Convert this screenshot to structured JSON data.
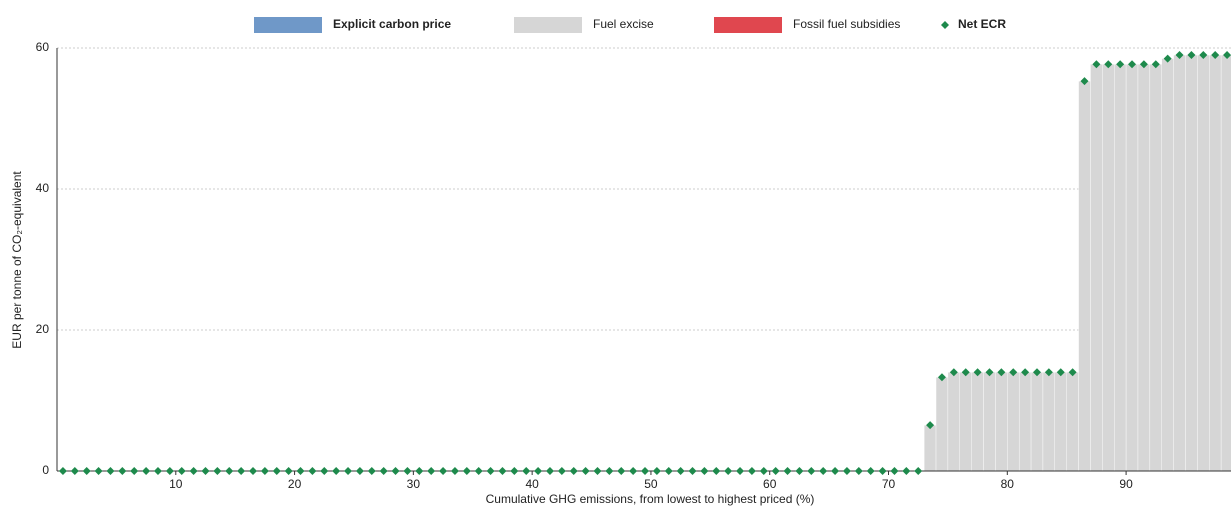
{
  "chart_data": {
    "type": "bar",
    "xlabel": "Cumulative GHG emissions, from lowest to highest priced (%)",
    "ylabel": "EUR per tonne of CO₂-equivalent",
    "x": [
      0.5,
      1.5,
      2.5,
      3.5,
      4.5,
      5.5,
      6.5,
      7.5,
      8.5,
      9.5,
      10.5,
      11.5,
      12.5,
      13.5,
      14.5,
      15.5,
      16.5,
      17.5,
      18.5,
      19.5,
      20.5,
      21.5,
      22.5,
      23.5,
      24.5,
      25.5,
      26.5,
      27.5,
      28.5,
      29.5,
      30.5,
      31.5,
      32.5,
      33.5,
      34.5,
      35.5,
      36.5,
      37.5,
      38.5,
      39.5,
      40.5,
      41.5,
      42.5,
      43.5,
      44.5,
      45.5,
      46.5,
      47.5,
      48.5,
      49.5,
      50.5,
      51.5,
      52.5,
      53.5,
      54.5,
      55.5,
      56.5,
      57.5,
      58.5,
      59.5,
      60.5,
      61.5,
      62.5,
      63.5,
      64.5,
      65.5,
      66.5,
      67.5,
      68.5,
      69.5,
      70.5,
      71.5,
      72.5,
      73.5,
      74.5,
      75.5,
      76.5,
      77.5,
      78.5,
      79.5,
      80.5,
      81.5,
      82.5,
      83.5,
      84.5,
      85.5,
      86.5,
      87.5,
      88.5,
      89.5,
      90.5,
      91.5,
      92.5,
      93.5,
      94.5,
      95.5,
      96.5,
      97.5,
      98.5
    ],
    "series": [
      {
        "name": "Explicit carbon price",
        "color": "#6f98c8",
        "values": [
          0,
          0,
          0,
          0,
          0,
          0,
          0,
          0,
          0,
          0,
          0,
          0,
          0,
          0,
          0,
          0,
          0,
          0,
          0,
          0,
          0,
          0,
          0,
          0,
          0,
          0,
          0,
          0,
          0,
          0,
          0,
          0,
          0,
          0,
          0,
          0,
          0,
          0,
          0,
          0,
          0,
          0,
          0,
          0,
          0,
          0,
          0,
          0,
          0,
          0,
          0,
          0,
          0,
          0,
          0,
          0,
          0,
          0,
          0,
          0,
          0,
          0,
          0,
          0,
          0,
          0,
          0,
          0,
          0,
          0,
          0,
          0,
          0,
          0,
          0,
          0,
          0,
          0,
          0,
          0,
          0,
          0,
          0,
          0,
          0,
          0,
          0,
          0,
          0,
          0,
          0,
          0,
          0,
          0,
          0,
          0,
          0,
          0,
          0
        ]
      },
      {
        "name": "Fuel excise",
        "color": "#d6d6d6",
        "values": [
          0,
          0,
          0,
          0,
          0,
          0,
          0,
          0,
          0,
          0,
          0,
          0,
          0,
          0,
          0,
          0,
          0,
          0,
          0,
          0,
          0,
          0,
          0,
          0,
          0,
          0,
          0,
          0,
          0,
          0,
          0,
          0,
          0,
          0,
          0,
          0,
          0,
          0,
          0,
          0,
          0,
          0,
          0,
          0,
          0,
          0,
          0,
          0,
          0,
          0,
          0,
          0,
          0,
          0,
          0,
          0,
          0,
          0,
          0,
          0,
          0,
          0,
          0,
          0,
          0,
          0,
          0,
          0,
          0,
          0,
          0,
          0,
          0,
          6.5,
          13.3,
          14,
          14,
          14,
          14,
          14,
          14,
          14,
          14,
          14,
          14,
          14,
          55.3,
          57.7,
          57.7,
          57.7,
          57.7,
          57.7,
          57.7,
          58.5,
          59,
          59,
          59,
          59,
          59
        ]
      },
      {
        "name": "Fossil fuel subsidies",
        "color": "#e0474f",
        "values": [
          0,
          0,
          0,
          0,
          0,
          0,
          0,
          0,
          0,
          0,
          0,
          0,
          0,
          0,
          0,
          0,
          0,
          0,
          0,
          0,
          0,
          0,
          0,
          0,
          0,
          0,
          0,
          0,
          0,
          0,
          0,
          0,
          0,
          0,
          0,
          0,
          0,
          0,
          0,
          0,
          0,
          0,
          0,
          0,
          0,
          0,
          0,
          0,
          0,
          0,
          0,
          0,
          0,
          0,
          0,
          0,
          0,
          0,
          0,
          0,
          0,
          0,
          0,
          0,
          0,
          0,
          0,
          0,
          0,
          0,
          0,
          0,
          0,
          0,
          0,
          0,
          0,
          0,
          0,
          0,
          0,
          0,
          0,
          0,
          0,
          0,
          0,
          0,
          0,
          0,
          0,
          0,
          0,
          0,
          0,
          0,
          0,
          0,
          0
        ]
      },
      {
        "name": "Net ECR",
        "color": "#1e8a4c",
        "marker": "diamond",
        "values": [
          0,
          0,
          0,
          0,
          0,
          0,
          0,
          0,
          0,
          0,
          0,
          0,
          0,
          0,
          0,
          0,
          0,
          0,
          0,
          0,
          0,
          0,
          0,
          0,
          0,
          0,
          0,
          0,
          0,
          0,
          0,
          0,
          0,
          0,
          0,
          0,
          0,
          0,
          0,
          0,
          0,
          0,
          0,
          0,
          0,
          0,
          0,
          0,
          0,
          0,
          0,
          0,
          0,
          0,
          0,
          0,
          0,
          0,
          0,
          0,
          0,
          0,
          0,
          0,
          0,
          0,
          0,
          0,
          0,
          0,
          0,
          0,
          0,
          6.5,
          13.3,
          14,
          14,
          14,
          14,
          14,
          14,
          14,
          14,
          14,
          14,
          14,
          55.3,
          57.7,
          57.7,
          57.7,
          57.7,
          57.7,
          57.7,
          58.5,
          59,
          59,
          59,
          59,
          59
        ]
      }
    ],
    "xlim": [
      0,
      99
    ],
    "xticks": [
      10,
      20,
      30,
      40,
      50,
      60,
      70,
      80,
      90
    ],
    "ylim": [
      0,
      60
    ],
    "yticks": [
      0,
      20,
      40,
      60
    ],
    "grid": true,
    "legend": "top"
  }
}
